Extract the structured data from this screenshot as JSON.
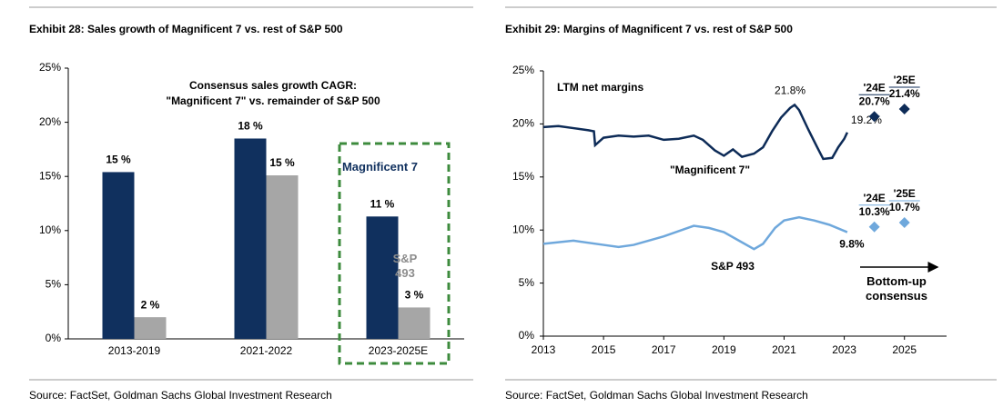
{
  "chart_data": [
    {
      "type": "bar",
      "title": "Exhibit 28: Sales growth of Magnificent 7 vs. rest of S&P 500",
      "annotations": [
        "Consensus sales growth CAGR:",
        "\"Magnificent 7\" vs. remainder of S&P 500"
      ],
      "categories": [
        "2013-2019",
        "2021-2022",
        "2023-2025E"
      ],
      "series": [
        {
          "name": "Magnificent 7",
          "color": "#10305e",
          "label_color": "#000000",
          "values": [
            15.4,
            18.5,
            11.3
          ],
          "value_labels": [
            "15 %",
            "18 %",
            "11 %"
          ]
        },
        {
          "name": "S&P 493",
          "color": "#a6a6a6",
          "label_color": "#8c8c8c",
          "values": [
            2.0,
            15.1,
            2.9
          ],
          "value_labels": [
            "2 %",
            "15 %",
            "3 %"
          ]
        }
      ],
      "highlight_color": "#3d8b3d",
      "ylim": [
        0,
        25
      ],
      "yticks": [
        {
          "value": 0,
          "label": "0%"
        },
        {
          "value": 5,
          "label": "5%"
        },
        {
          "value": 10,
          "label": "10%"
        },
        {
          "value": 15,
          "label": "15%"
        },
        {
          "value": 20,
          "label": "20%"
        },
        {
          "value": 25,
          "label": "25%"
        }
      ],
      "source": "Source: FactSet, Goldman Sachs Global Investment Research"
    },
    {
      "type": "line",
      "title": "Exhibit 29: Margins of Magnificent 7 vs. rest of S&P 500",
      "subtitle": "LTM net margins",
      "series": [
        {
          "name": "\"Magnificent 7\"",
          "color": "#0d2b57",
          "x": [
            2013.0,
            2013.5,
            2014.0,
            2014.5,
            2014.68,
            2014.72,
            2015.0,
            2015.5,
            2016.0,
            2016.5,
            2017.0,
            2017.5,
            2018.0,
            2018.3,
            2018.7,
            2019.0,
            2019.3,
            2019.6,
            2020.0,
            2020.3,
            2020.6,
            2020.9,
            2021.2,
            2021.35,
            2021.5,
            2021.8,
            2022.1,
            2022.3,
            2022.6,
            2022.8,
            2023.0,
            2023.1
          ],
          "values": [
            19.7,
            19.8,
            19.6,
            19.4,
            19.3,
            18.0,
            18.7,
            18.9,
            18.8,
            18.9,
            18.5,
            18.6,
            18.9,
            18.5,
            17.5,
            17.0,
            17.6,
            16.9,
            17.2,
            17.8,
            19.3,
            20.6,
            21.5,
            21.8,
            21.3,
            19.5,
            17.8,
            16.7,
            16.8,
            17.8,
            18.6,
            19.2
          ],
          "value_labels": [
            null,
            null,
            null,
            null,
            null,
            null,
            null,
            null,
            null,
            null,
            null,
            null,
            null,
            null,
            null,
            null,
            null,
            null,
            null,
            null,
            null,
            null,
            null,
            "21.8%",
            null,
            null,
            null,
            null,
            null,
            null,
            null,
            "19.2%"
          ]
        },
        {
          "name": "S&P 493",
          "color": "#6fa8dc",
          "x": [
            2013.0,
            2014.0,
            2015.0,
            2015.5,
            2016.0,
            2017.0,
            2018.0,
            2018.5,
            2019.0,
            2019.5,
            2020.0,
            2020.3,
            2020.7,
            2021.0,
            2021.5,
            2022.0,
            2022.5,
            2023.1
          ],
          "values": [
            8.7,
            9.0,
            8.6,
            8.4,
            8.6,
            9.4,
            10.4,
            10.2,
            9.8,
            9.0,
            8.2,
            8.7,
            10.2,
            10.9,
            11.2,
            10.9,
            10.5,
            9.8
          ],
          "value_labels": [
            null,
            null,
            null,
            null,
            null,
            null,
            null,
            null,
            null,
            null,
            null,
            null,
            null,
            null,
            null,
            null,
            null,
            "9.8%"
          ]
        }
      ],
      "estimates": [
        {
          "color": "#0d2b57",
          "x": [
            2024,
            2025
          ],
          "x_labels": [
            "'24E",
            "'25E"
          ],
          "values": [
            20.7,
            21.4
          ],
          "value_labels": [
            "20.7%",
            "21.4%"
          ]
        },
        {
          "color": "#6fa8dc",
          "x": [
            2024,
            2025
          ],
          "x_labels": [
            "'24E",
            "'25E"
          ],
          "values": [
            10.3,
            10.7
          ],
          "value_labels": [
            "10.3%",
            "10.7%"
          ]
        }
      ],
      "estimate_note": "Bottom-up consensus",
      "xlim": [
        2013,
        2026.4
      ],
      "xticks": [
        2013,
        2015,
        2017,
        2019,
        2021,
        2023,
        2025
      ],
      "ylim": [
        0,
        25
      ],
      "yticks": [
        {
          "value": 0,
          "label": "0%"
        },
        {
          "value": 5,
          "label": "5%"
        },
        {
          "value": 10,
          "label": "10%"
        },
        {
          "value": 15,
          "label": "15%"
        },
        {
          "value": 20,
          "label": "20%"
        },
        {
          "value": 25,
          "label": "25%"
        }
      ],
      "source": "Source: FactSet, Goldman Sachs Global Investment Research"
    }
  ]
}
